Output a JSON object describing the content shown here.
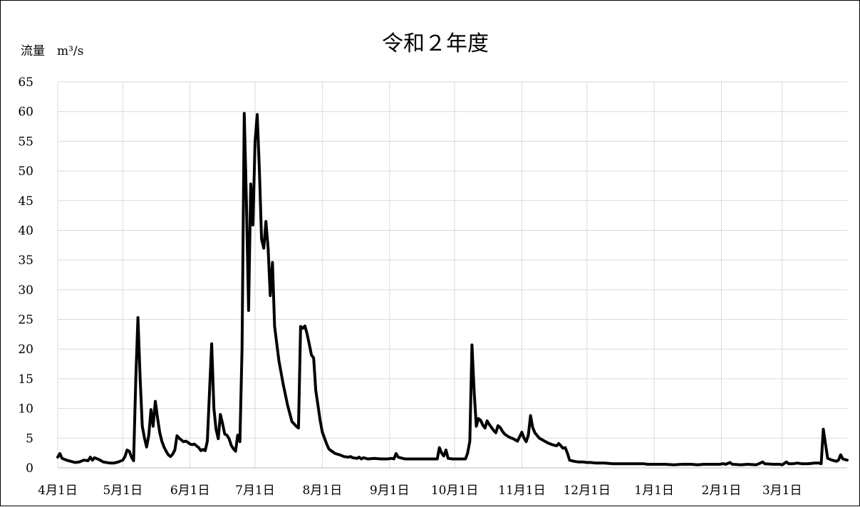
{
  "chart_data": {
    "type": "line",
    "title": "令和２年度",
    "ylabel": "流量　m³/s",
    "xlabel": "",
    "ylim": [
      0,
      65
    ],
    "yticks": [
      0,
      5,
      10,
      15,
      20,
      25,
      30,
      35,
      40,
      45,
      50,
      55,
      60,
      65
    ],
    "x_ticks": [
      {
        "day": 0,
        "label": "4月1日"
      },
      {
        "day": 30,
        "label": "5月1日"
      },
      {
        "day": 61,
        "label": "6月1日"
      },
      {
        "day": 91,
        "label": "7月1日"
      },
      {
        "day": 122,
        "label": "8月1日"
      },
      {
        "day": 153,
        "label": "9月1日"
      },
      {
        "day": 183,
        "label": "10月1日"
      },
      {
        "day": 214,
        "label": "11月1日"
      },
      {
        "day": 244,
        "label": "12月1日"
      },
      {
        "day": 275,
        "label": "1月1日"
      },
      {
        "day": 306,
        "label": "2月1日"
      },
      {
        "day": 334,
        "label": "3月1日"
      }
    ],
    "x_range_days": [
      0,
      364
    ],
    "grid": true,
    "legend": "none",
    "line_color": "#000000",
    "grid_color": "#d9d9d9",
    "series": [
      {
        "points": [
          [
            0,
            1.8
          ],
          [
            1,
            2.4
          ],
          [
            2,
            1.6
          ],
          [
            4,
            1.3
          ],
          [
            6,
            1.1
          ],
          [
            8,
            0.9
          ],
          [
            10,
            1.0
          ],
          [
            12,
            1.3
          ],
          [
            14,
            1.2
          ],
          [
            15,
            1.8
          ],
          [
            16,
            1.3
          ],
          [
            17,
            1.7
          ],
          [
            19,
            1.4
          ],
          [
            21,
            1.0
          ],
          [
            24,
            0.8
          ],
          [
            26,
            0.8
          ],
          [
            28,
            1.0
          ],
          [
            30,
            1.3
          ],
          [
            31,
            1.9
          ],
          [
            32,
            3.0
          ],
          [
            33,
            2.8
          ],
          [
            34,
            1.8
          ],
          [
            35,
            1.2
          ],
          [
            36,
            15.0
          ],
          [
            37,
            25.3
          ],
          [
            38,
            15.0
          ],
          [
            39,
            7.0
          ],
          [
            40,
            5.0
          ],
          [
            41,
            3.5
          ],
          [
            42,
            5.5
          ],
          [
            43,
            9.8
          ],
          [
            44,
            7.0
          ],
          [
            45,
            11.2
          ],
          [
            46,
            8.5
          ],
          [
            47,
            6.0
          ],
          [
            48,
            4.5
          ],
          [
            49,
            3.5
          ],
          [
            50,
            2.8
          ],
          [
            51,
            2.2
          ],
          [
            52,
            1.9
          ],
          [
            53,
            2.3
          ],
          [
            54,
            3.0
          ],
          [
            55,
            5.4
          ],
          [
            56,
            5.0
          ],
          [
            57,
            4.7
          ],
          [
            58,
            4.4
          ],
          [
            59,
            4.5
          ],
          [
            60,
            4.3
          ],
          [
            61,
            4.0
          ],
          [
            62,
            3.9
          ],
          [
            63,
            4.0
          ],
          [
            64,
            3.7
          ],
          [
            65,
            3.4
          ],
          [
            66,
            2.9
          ],
          [
            67,
            3.1
          ],
          [
            68,
            2.9
          ],
          [
            69,
            4.5
          ],
          [
            70,
            13.0
          ],
          [
            71,
            20.9
          ],
          [
            72,
            10.0
          ],
          [
            73,
            6.5
          ],
          [
            74,
            4.9
          ],
          [
            75,
            9.0
          ],
          [
            76,
            7.5
          ],
          [
            77,
            5.7
          ],
          [
            78,
            5.5
          ],
          [
            79,
            4.9
          ],
          [
            80,
            3.8
          ],
          [
            81,
            3.2
          ],
          [
            82,
            2.8
          ],
          [
            83,
            5.5
          ],
          [
            84,
            4.4
          ],
          [
            85,
            20.0
          ],
          [
            86,
            59.7
          ],
          [
            87,
            45.0
          ],
          [
            88,
            26.5
          ],
          [
            89,
            47.8
          ],
          [
            90,
            40.9
          ],
          [
            91,
            55.0
          ],
          [
            92,
            59.5
          ],
          [
            93,
            50.0
          ],
          [
            94,
            38.5
          ],
          [
            95,
            37.0
          ],
          [
            96,
            41.5
          ],
          [
            97,
            37.0
          ],
          [
            98,
            29.0
          ],
          [
            99,
            34.6
          ],
          [
            100,
            23.8
          ],
          [
            102,
            18.0
          ],
          [
            104,
            14.0
          ],
          [
            106,
            10.5
          ],
          [
            108,
            7.8
          ],
          [
            110,
            7.0
          ],
          [
            111,
            6.7
          ],
          [
            112,
            23.8
          ],
          [
            113,
            23.5
          ],
          [
            114,
            23.9
          ],
          [
            115,
            22.5
          ],
          [
            116,
            20.8
          ],
          [
            117,
            19.0
          ],
          [
            118,
            18.5
          ],
          [
            119,
            13.0
          ],
          [
            120,
            10.5
          ],
          [
            121,
            8.0
          ],
          [
            122,
            6.0
          ],
          [
            124,
            4.0
          ],
          [
            125,
            3.2
          ],
          [
            126,
            2.9
          ],
          [
            128,
            2.4
          ],
          [
            130,
            2.2
          ],
          [
            132,
            1.9
          ],
          [
            134,
            1.8
          ],
          [
            135,
            1.9
          ],
          [
            136,
            1.7
          ],
          [
            138,
            1.6
          ],
          [
            139,
            1.8
          ],
          [
            140,
            1.5
          ],
          [
            141,
            1.7
          ],
          [
            143,
            1.5
          ],
          [
            146,
            1.6
          ],
          [
            149,
            1.5
          ],
          [
            152,
            1.5
          ],
          [
            154,
            1.6
          ],
          [
            155,
            1.5
          ],
          [
            156,
            2.4
          ],
          [
            157,
            1.8
          ],
          [
            158,
            1.7
          ],
          [
            160,
            1.5
          ],
          [
            165,
            1.5
          ],
          [
            170,
            1.5
          ],
          [
            175,
            1.5
          ],
          [
            176,
            3.4
          ],
          [
            177,
            2.5
          ],
          [
            178,
            2.0
          ],
          [
            179,
            3.0
          ],
          [
            180,
            1.6
          ],
          [
            182,
            1.5
          ],
          [
            185,
            1.5
          ],
          [
            188,
            1.5
          ],
          [
            189,
            2.5
          ],
          [
            190,
            4.5
          ],
          [
            191,
            20.7
          ],
          [
            192,
            13.0
          ],
          [
            193,
            7.0
          ],
          [
            194,
            8.3
          ],
          [
            195,
            8.0
          ],
          [
            196,
            7.2
          ],
          [
            197,
            6.7
          ],
          [
            198,
            7.9
          ],
          [
            199,
            7.3
          ],
          [
            200,
            6.8
          ],
          [
            201,
            6.3
          ],
          [
            202,
            5.9
          ],
          [
            203,
            7.1
          ],
          [
            204,
            6.8
          ],
          [
            205,
            6.2
          ],
          [
            206,
            5.7
          ],
          [
            208,
            5.2
          ],
          [
            210,
            4.9
          ],
          [
            212,
            4.5
          ],
          [
            214,
            6.0
          ],
          [
            215,
            5.0
          ],
          [
            216,
            4.4
          ],
          [
            217,
            5.5
          ],
          [
            218,
            8.8
          ],
          [
            219,
            6.8
          ],
          [
            220,
            5.9
          ],
          [
            222,
            5.0
          ],
          [
            224,
            4.6
          ],
          [
            226,
            4.2
          ],
          [
            228,
            3.9
          ],
          [
            230,
            3.7
          ],
          [
            231,
            4.1
          ],
          [
            232,
            3.7
          ],
          [
            233,
            3.3
          ],
          [
            234,
            3.4
          ],
          [
            235,
            2.5
          ],
          [
            236,
            1.3
          ],
          [
            238,
            1.1
          ],
          [
            240,
            1.0
          ],
          [
            242,
            1.0
          ],
          [
            244,
            0.9
          ],
          [
            246,
            0.9
          ],
          [
            248,
            0.8
          ],
          [
            252,
            0.8
          ],
          [
            256,
            0.7
          ],
          [
            260,
            0.7
          ],
          [
            265,
            0.7
          ],
          [
            270,
            0.7
          ],
          [
            272,
            0.6
          ],
          [
            276,
            0.6
          ],
          [
            280,
            0.6
          ],
          [
            284,
            0.5
          ],
          [
            288,
            0.6
          ],
          [
            292,
            0.6
          ],
          [
            295,
            0.5
          ],
          [
            298,
            0.6
          ],
          [
            302,
            0.6
          ],
          [
            305,
            0.6
          ],
          [
            307,
            0.7
          ],
          [
            308,
            0.6
          ],
          [
            310,
            0.9
          ],
          [
            311,
            0.6
          ],
          [
            315,
            0.5
          ],
          [
            318,
            0.6
          ],
          [
            322,
            0.5
          ],
          [
            324,
            0.8
          ],
          [
            325,
            1.0
          ],
          [
            326,
            0.7
          ],
          [
            330,
            0.6
          ],
          [
            333,
            0.6
          ],
          [
            334,
            0.5
          ],
          [
            336,
            1.0
          ],
          [
            337,
            0.7
          ],
          [
            339,
            0.7
          ],
          [
            341,
            0.8
          ],
          [
            343,
            0.7
          ],
          [
            346,
            0.7
          ],
          [
            349,
            0.8
          ],
          [
            351,
            0.8
          ],
          [
            352,
            0.7
          ],
          [
            353,
            6.5
          ],
          [
            354,
            4.0
          ],
          [
            355,
            1.6
          ],
          [
            357,
            1.3
          ],
          [
            359,
            1.1
          ],
          [
            360,
            1.3
          ],
          [
            361,
            2.2
          ],
          [
            362,
            1.5
          ],
          [
            364,
            1.3
          ]
        ]
      }
    ]
  }
}
